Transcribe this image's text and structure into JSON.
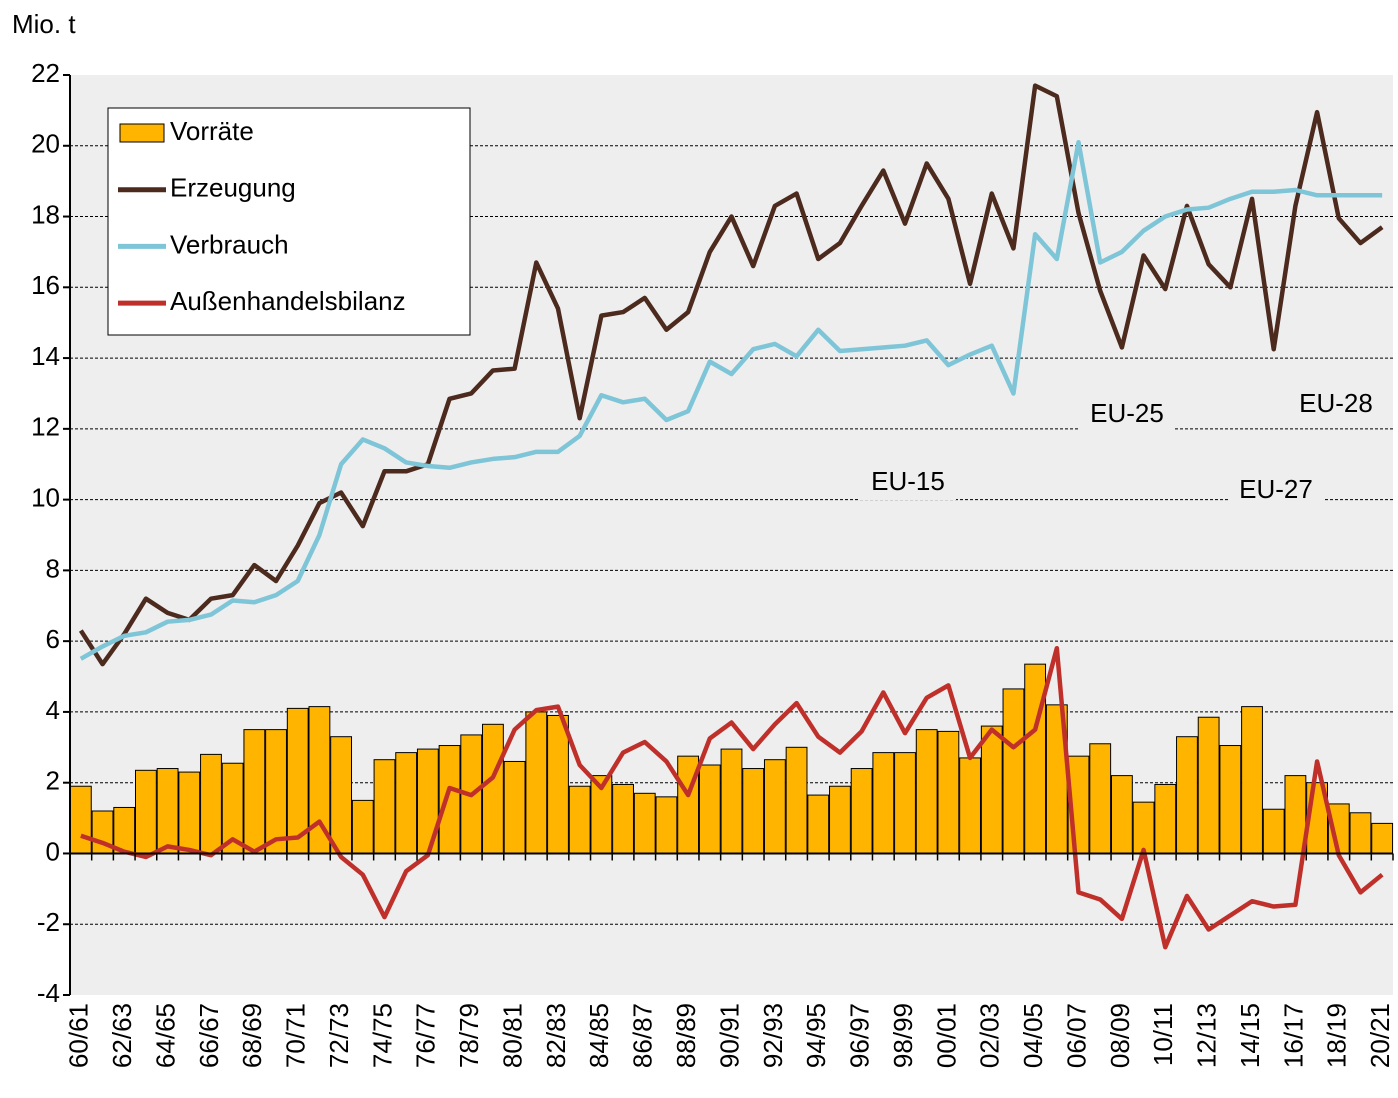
{
  "chart_data": {
    "type": "bar",
    "y_label": "Mio. t",
    "categories": [
      "60/61",
      null,
      "62/63",
      null,
      "64/65",
      null,
      "66/67",
      null,
      "68/69",
      null,
      "70/71",
      null,
      "72/73",
      null,
      "74/75",
      null,
      "76/77",
      null,
      "78/79",
      null,
      "80/81",
      null,
      "82/83",
      null,
      "84/85",
      null,
      "86/87",
      null,
      "88/89",
      null,
      "90/91",
      null,
      "92/93",
      null,
      "94/95",
      null,
      "96/97",
      null,
      "98/99",
      null,
      "00/01",
      null,
      "02/03",
      null,
      "04/05",
      null,
      "06/07",
      null,
      "08/09",
      null,
      "10/11",
      null,
      "12/13",
      null,
      "14/15",
      null,
      "16/17",
      null,
      "18/19",
      null,
      "20/21"
    ],
    "series": [
      {
        "name": "Vorräte",
        "type": "bar",
        "color": "#ffb400",
        "values": [
          1.9,
          1.2,
          1.3,
          2.35,
          2.4,
          2.3,
          2.8,
          2.55,
          3.5,
          3.5,
          4.1,
          4.15,
          3.3,
          1.5,
          2.65,
          2.85,
          2.95,
          3.05,
          3.35,
          3.65,
          2.6,
          4.0,
          3.9,
          1.9,
          2.2,
          1.95,
          1.7,
          1.6,
          2.75,
          2.5,
          2.95,
          2.4,
          2.65,
          3.0,
          1.65,
          1.9,
          2.4,
          2.85,
          2.85,
          3.5,
          3.45,
          2.7,
          3.6,
          4.65,
          5.35,
          4.2,
          2.75,
          3.1,
          2.2,
          1.45,
          1.95,
          3.3,
          3.85,
          3.05,
          4.15,
          1.25,
          2.2,
          2.0,
          1.4,
          1.15,
          0.85
        ]
      },
      {
        "name": "Erzeugung",
        "type": "line",
        "color": "#4d2a1e",
        "values": [
          6.3,
          5.35,
          6.2,
          7.2,
          6.8,
          6.6,
          7.2,
          7.3,
          8.15,
          7.7,
          8.7,
          9.9,
          10.2,
          9.25,
          10.8,
          10.8,
          11.0,
          12.85,
          13.0,
          13.65,
          13.7,
          16.7,
          15.4,
          12.3,
          15.2,
          15.3,
          15.7,
          14.8,
          15.3,
          17.0,
          18.0,
          16.6,
          18.3,
          18.65,
          16.8,
          17.25,
          18.3,
          19.3,
          17.8,
          19.5,
          18.5,
          16.1,
          18.65,
          17.1,
          21.7,
          21.4,
          18.1,
          15.9,
          14.3,
          16.9,
          15.95,
          18.3,
          16.65,
          16.0,
          18.5,
          14.25,
          18.3,
          20.95,
          17.95,
          17.25,
          17.7
        ]
      },
      {
        "name": "Verbrauch",
        "type": "line",
        "color": "#7ec5d8",
        "values": [
          5.5,
          5.85,
          6.15,
          6.25,
          6.55,
          6.6,
          6.75,
          7.15,
          7.1,
          7.3,
          7.7,
          9.0,
          11.0,
          11.7,
          11.45,
          11.05,
          10.95,
          10.9,
          11.05,
          11.15,
          11.2,
          11.35,
          11.35,
          11.8,
          12.95,
          12.75,
          12.85,
          12.25,
          12.5,
          13.9,
          13.55,
          14.25,
          14.4,
          14.05,
          14.8,
          14.2,
          14.25,
          14.3,
          14.35,
          14.5,
          13.8,
          14.1,
          14.35,
          13.0,
          17.5,
          16.8,
          20.1,
          16.7,
          17.0,
          17.6,
          18.0,
          18.2,
          18.25,
          18.5,
          18.7,
          18.7,
          18.75,
          18.6,
          18.6,
          18.6,
          18.6
        ]
      },
      {
        "name": "Außenhandelsbilanz",
        "type": "line",
        "color": "#c0302a",
        "values": [
          0.5,
          0.3,
          0.05,
          -0.1,
          0.2,
          0.1,
          -0.05,
          0.4,
          0.05,
          0.4,
          0.45,
          0.9,
          -0.1,
          -0.6,
          -1.8,
          -0.5,
          -0.05,
          1.85,
          1.65,
          2.15,
          3.5,
          4.05,
          4.15,
          2.5,
          1.85,
          2.85,
          3.15,
          2.6,
          1.65,
          3.25,
          3.7,
          2.95,
          3.65,
          4.25,
          3.3,
          2.85,
          3.45,
          4.55,
          3.4,
          4.4,
          4.75,
          2.7,
          3.5,
          3.0,
          3.5,
          5.8,
          -1.1,
          -1.3,
          -1.85,
          0.1,
          -2.65,
          -1.2,
          -2.15,
          -1.75,
          -1.35,
          -1.5,
          -1.45,
          2.6,
          -0.05,
          -1.1,
          -0.6
        ]
      }
    ],
    "annotations": [
      "EU-15",
      "EU-25",
      "EU-27",
      "EU-28"
    ],
    "ylim": [
      -4,
      22
    ],
    "yticks": [
      -4,
      -2,
      0,
      2,
      4,
      6,
      8,
      10,
      12,
      14,
      16,
      18,
      20,
      22
    ],
    "grid": true,
    "legend": "upper left"
  }
}
